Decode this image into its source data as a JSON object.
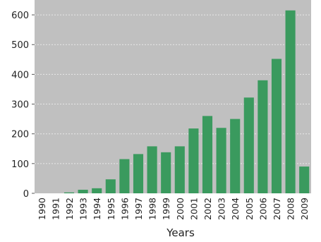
{
  "chart_data": {
    "type": "bar",
    "xlabel": "Years",
    "ylabel": "",
    "ylim": [
      0,
      650
    ],
    "yticks": [
      0,
      100,
      200,
      300,
      400,
      500,
      600
    ],
    "grid": true,
    "colors": {
      "bar": "#3a9a5e",
      "plot_bg": "#c0c0c0",
      "grid": "#e8e8e8",
      "text": "#222222"
    },
    "categories": [
      "1990",
      "1991",
      "1992",
      "1993",
      "1994",
      "1995",
      "1996",
      "1997",
      "1998",
      "1999",
      "2000",
      "2001",
      "2002",
      "2003",
      "2004",
      "2005",
      "2006",
      "2007",
      "2008",
      "2009"
    ],
    "values": [
      0,
      0,
      3,
      12,
      17,
      47,
      115,
      132,
      158,
      138,
      158,
      218,
      260,
      220,
      250,
      322,
      380,
      452,
      615,
      90
    ]
  }
}
